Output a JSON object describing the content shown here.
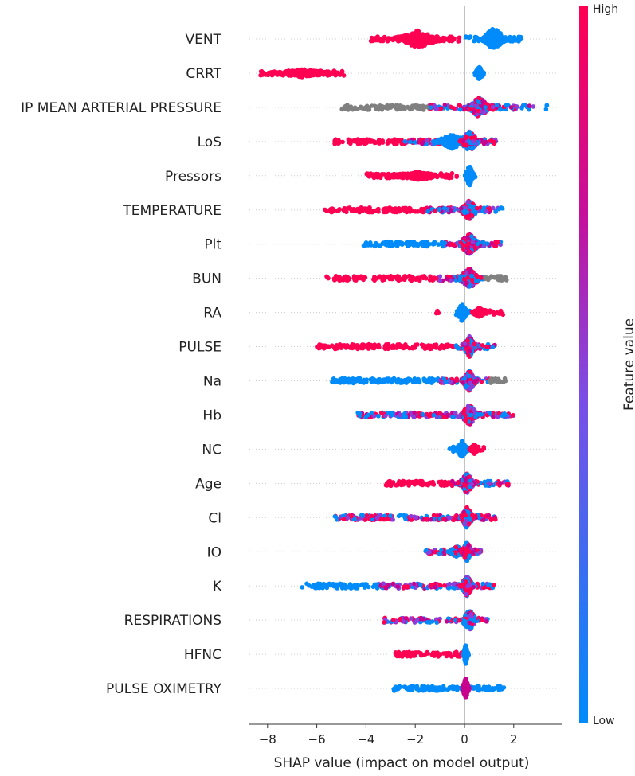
{
  "chart_data": {
    "type": "scatter",
    "subtype": "shap-beeswarm",
    "xlabel": "SHAP value (impact on model output)",
    "xlim": [
      -8.75,
      3.95
    ],
    "xticks": [
      -8,
      -6,
      -4,
      -2,
      0,
      2
    ],
    "xtick_labels": [
      "−8",
      "−6",
      "−4",
      "−2",
      "0",
      "2"
    ],
    "colorbar": {
      "label": "Feature value",
      "high": "High",
      "low": "Low",
      "high_color": "#ff0052",
      "low_color": "#008bfb"
    },
    "colors": {
      "red": "#ff0052",
      "blue": "#008bfb",
      "grey": "#808080",
      "purple": "#8a3fdc",
      "magenta": "#c8008e"
    },
    "features": [
      {
        "name": "VENT",
        "segments": [
          [
            -3.8,
            -0.2,
            "red"
          ],
          [
            0.05,
            2.3,
            "blue"
          ]
        ],
        "peaks": [
          [
            -1.9,
            1.1,
            "red",
            11
          ],
          [
            1.2,
            0.55,
            "blue",
            14
          ]
        ]
      },
      {
        "name": "CRRT",
        "segments": [
          [
            -8.3,
            -4.9,
            "red"
          ],
          [
            0.4,
            0.8,
            "blue"
          ]
        ],
        "peaks": [
          [
            -6.6,
            1.4,
            "red",
            5
          ],
          [
            0.6,
            0.2,
            "blue",
            8
          ]
        ]
      },
      {
        "name": "IP MEAN ARTERIAL PRESSURE",
        "segments": [
          [
            -5.0,
            -1.4,
            "grey"
          ],
          [
            -1.4,
            2.8,
            "mix"
          ],
          [
            3.3,
            3.35,
            "blue"
          ]
        ],
        "peaks": [
          [
            0.6,
            0.5,
            "mix",
            13
          ]
        ]
      },
      {
        "name": "LoS",
        "segments": [
          [
            -5.3,
            -2.5,
            "red"
          ],
          [
            -2.5,
            1.5,
            "mix"
          ]
        ],
        "peaks": [
          [
            -0.5,
            0.8,
            "blue",
            9
          ],
          [
            0.2,
            0.4,
            "mix",
            14
          ]
        ]
      },
      {
        "name": "Pressors",
        "segments": [
          [
            -4.0,
            -0.3,
            "red"
          ],
          [
            0.0,
            0.45,
            "blue"
          ]
        ],
        "peaks": [
          [
            -1.9,
            1.4,
            "red",
            5
          ],
          [
            0.2,
            0.2,
            "blue",
            13
          ]
        ]
      },
      {
        "name": "TEMPERATURE",
        "segments": [
          [
            -5.7,
            -1.5,
            "red"
          ],
          [
            -1.5,
            1.4,
            "mix"
          ],
          [
            1.4,
            1.55,
            "blue"
          ]
        ],
        "peaks": [
          [
            0.2,
            0.4,
            "mix",
            13
          ]
        ]
      },
      {
        "name": "Plt",
        "segments": [
          [
            -4.1,
            -1.0,
            "blue"
          ],
          [
            -1.0,
            1.5,
            "mix"
          ]
        ],
        "peaks": [
          [
            0.2,
            0.5,
            "mix",
            13
          ]
        ]
      },
      {
        "name": "BUN",
        "segments": [
          [
            -5.6,
            -5.5,
            "red"
          ],
          [
            -5.3,
            -1.0,
            "red"
          ],
          [
            -1.0,
            0.8,
            "mix"
          ],
          [
            0.8,
            1.75,
            "grey"
          ]
        ],
        "peaks": [
          [
            0.2,
            0.5,
            "mix",
            13
          ]
        ]
      },
      {
        "name": "RA",
        "segments": [
          [
            -1.15,
            -1.05,
            "red"
          ],
          [
            -0.4,
            0.3,
            "blue"
          ],
          [
            0.3,
            1.6,
            "red"
          ]
        ],
        "peaks": [
          [
            -0.1,
            0.25,
            "blue",
            11
          ],
          [
            0.6,
            0.3,
            "red",
            6
          ]
        ]
      },
      {
        "name": "PULSE",
        "segments": [
          [
            -6.0,
            -0.5,
            "red"
          ],
          [
            -0.5,
            1.3,
            "mix"
          ]
        ],
        "peaks": [
          [
            0.2,
            0.3,
            "mix",
            13
          ]
        ]
      },
      {
        "name": "Na",
        "segments": [
          [
            -5.4,
            -1.0,
            "blue"
          ],
          [
            -1.0,
            1.0,
            "mix"
          ],
          [
            1.0,
            1.7,
            "grey"
          ]
        ],
        "peaks": [
          [
            0.2,
            0.35,
            "mix",
            13
          ]
        ]
      },
      {
        "name": "Hb",
        "segments": [
          [
            -4.4,
            -1.0,
            "mix"
          ],
          [
            -1.0,
            2.0,
            "mix"
          ]
        ],
        "peaks": [
          [
            0.2,
            0.4,
            "mix",
            13
          ]
        ]
      },
      {
        "name": "NC",
        "segments": [
          [
            -0.7,
            0.2,
            "blue"
          ],
          [
            0.2,
            0.8,
            "red"
          ]
        ],
        "peaks": [
          [
            -0.1,
            0.25,
            "blue",
            11
          ],
          [
            0.4,
            0.2,
            "red",
            6
          ]
        ]
      },
      {
        "name": "Age",
        "segments": [
          [
            -3.3,
            -0.5,
            "red"
          ],
          [
            -0.5,
            1.8,
            "mix"
          ]
        ],
        "peaks": [
          [
            0.1,
            0.35,
            "mix",
            13
          ]
        ]
      },
      {
        "name": "Cl",
        "segments": [
          [
            -5.3,
            -1.0,
            "mix"
          ],
          [
            -1.0,
            1.3,
            "mix"
          ]
        ],
        "peaks": [
          [
            0.1,
            0.3,
            "mix",
            13
          ]
        ]
      },
      {
        "name": "IO",
        "segments": [
          [
            -1.6,
            0.7,
            "mix"
          ]
        ],
        "peaks": [
          [
            -0.3,
            0.4,
            "mix",
            7
          ],
          [
            0.1,
            0.25,
            "mix",
            12
          ]
        ]
      },
      {
        "name": "K",
        "segments": [
          [
            -6.6,
            -3.5,
            "blue"
          ],
          [
            -3.5,
            1.2,
            "mix"
          ]
        ],
        "peaks": [
          [
            0.1,
            0.3,
            "mix",
            13
          ]
        ]
      },
      {
        "name": "RESPIRATIONS",
        "segments": [
          [
            -3.3,
            -0.5,
            "mix"
          ],
          [
            -0.5,
            1.0,
            "mix"
          ]
        ],
        "peaks": [
          [
            0.2,
            0.35,
            "mix",
            13
          ]
        ]
      },
      {
        "name": "HFNC",
        "segments": [
          [
            -2.8,
            -0.1,
            "red"
          ],
          [
            0.0,
            0.2,
            "blue"
          ]
        ],
        "peaks": [
          [
            0.05,
            0.1,
            "blue",
            12
          ]
        ]
      },
      {
        "name": "PULSE OXIMETRY",
        "segments": [
          [
            -2.9,
            1.6,
            "blue"
          ]
        ],
        "peaks": [
          [
            0.05,
            0.15,
            "magenta",
            13
          ]
        ]
      }
    ]
  }
}
